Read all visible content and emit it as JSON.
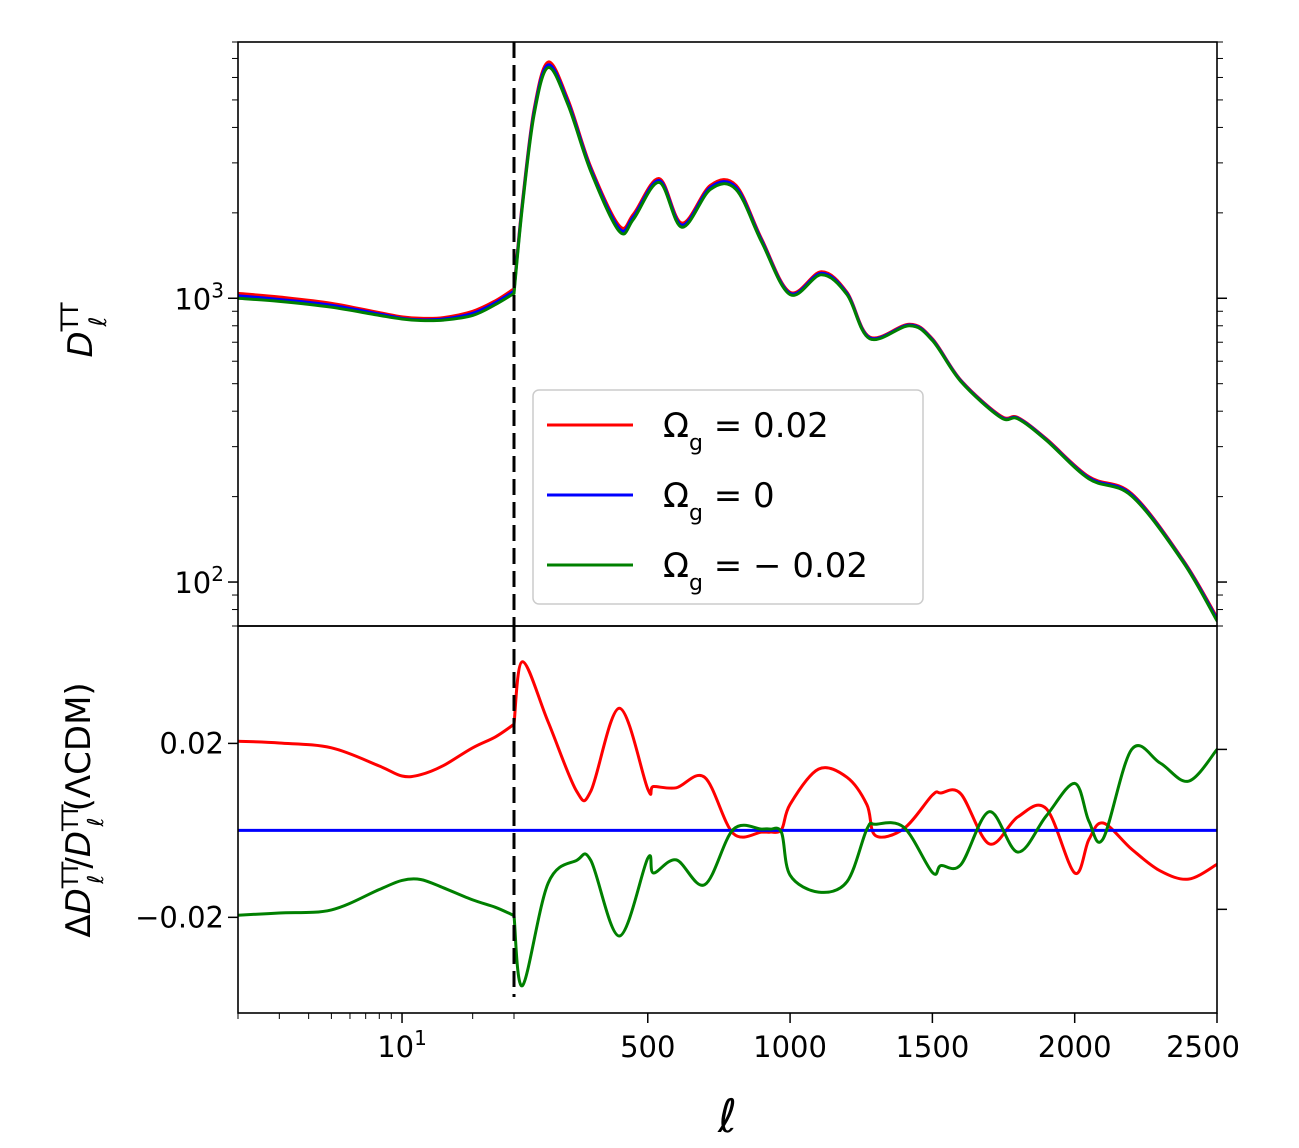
{
  "chart_data": [
    {
      "type": "line",
      "panel": "top",
      "xscale": "log-linear hybrid",
      "yscale": "log",
      "ylim": [
        70,
        8000
      ],
      "ylabel": "D_ℓ^TT",
      "ylabel_parts": {
        "base": "D",
        "sub": "ℓ",
        "sup": "TT"
      },
      "yticks": [
        {
          "value": 100,
          "base": "10",
          "exp": "2"
        },
        {
          "value": 1000,
          "base": "10",
          "exp": "3"
        }
      ],
      "xswitch": 30,
      "vline": 30,
      "legend_position": "center",
      "legend": [
        "Ωg = 0.02",
        "Ωg = 0",
        "Ωg = − 0.02"
      ],
      "legend_parts": [
        {
          "base": "Ω",
          "sub": "g",
          "rest": " = 0.02"
        },
        {
          "base": "Ω",
          "sub": "g",
          "rest": " = 0"
        },
        {
          "base": "Ω",
          "sub": "g",
          "rest": " = − 0.02"
        }
      ],
      "series": [
        {
          "name": "Ωg = 0.02",
          "color": "#ff0000",
          "x": [
            2,
            3,
            5,
            8,
            10,
            12,
            15,
            20,
            25,
            30,
            60,
            100,
            150,
            220,
            300,
            400,
            450,
            540,
            620,
            720,
            810,
            900,
            1000,
            1110,
            1200,
            1280,
            1420,
            1500,
            1600,
            1740,
            1800,
            1900,
            2050,
            2200,
            2380,
            2500
          ],
          "y": [
            1040,
            1010,
            960,
            890,
            860,
            850,
            855,
            900,
            980,
            1080,
            2200,
            4600,
            6800,
            5000,
            2900,
            1800,
            1980,
            2640,
            1840,
            2500,
            2500,
            1620,
            1050,
            1240,
            1050,
            730,
            810,
            720,
            515,
            385,
            380,
            320,
            235,
            205,
            120,
            75
          ]
        },
        {
          "name": "Ωg = 0",
          "color": "#0000ff",
          "x": [
            2,
            3,
            5,
            8,
            10,
            12,
            15,
            20,
            25,
            30,
            60,
            100,
            150,
            220,
            300,
            400,
            450,
            540,
            620,
            720,
            810,
            900,
            1000,
            1110,
            1200,
            1280,
            1420,
            1500,
            1600,
            1740,
            1800,
            1900,
            2050,
            2200,
            2380,
            2500
          ],
          "y": [
            1020,
            990,
            945,
            880,
            850,
            840,
            845,
            885,
            965,
            1060,
            2160,
            4500,
            6650,
            4900,
            2850,
            1760,
            1940,
            2600,
            1810,
            2460,
            2460,
            1600,
            1040,
            1225,
            1040,
            725,
            805,
            715,
            512,
            382,
            378,
            318,
            233,
            203,
            119,
            74
          ]
        },
        {
          "name": "Ωg = − 0.02",
          "color": "#008000",
          "x": [
            2,
            3,
            5,
            8,
            10,
            12,
            15,
            20,
            25,
            30,
            60,
            100,
            150,
            220,
            300,
            400,
            450,
            540,
            620,
            720,
            810,
            900,
            1000,
            1110,
            1200,
            1280,
            1420,
            1500,
            1600,
            1740,
            1800,
            1900,
            2050,
            2200,
            2380,
            2500
          ],
          "y": [
            1000,
            975,
            930,
            870,
            845,
            835,
            838,
            870,
            950,
            1040,
            2120,
            4400,
            6500,
            4800,
            2800,
            1720,
            1900,
            2560,
            1780,
            2420,
            2420,
            1580,
            1030,
            1210,
            1030,
            720,
            800,
            710,
            509,
            380,
            376,
            316,
            231,
            201,
            118,
            73
          ]
        }
      ]
    },
    {
      "type": "line",
      "panel": "bottom",
      "xscale": "log-linear hybrid",
      "yscale": "linear",
      "ylim": [
        -0.042,
        0.047
      ],
      "ylabel": "ΔD_ℓ^TT/D_ℓ^TT(ΛCDM)",
      "ylabel_parts": {
        "pre": "Δ",
        "base": "D",
        "sub": "ℓ",
        "sup": "TT",
        "mid": "/",
        "base2": "D",
        "sub2": "ℓ",
        "sup2": "TT",
        "post": "(ΛCDM)"
      },
      "yticks": [
        {
          "value": 0.02,
          "label": "0.02"
        },
        {
          "value": -0.02,
          "label": "−0.02"
        }
      ],
      "xticks_log": [
        {
          "value": 10,
          "base": "10",
          "exp": "1"
        }
      ],
      "xticks_linear": [
        500,
        1000,
        1500,
        2000,
        2500
      ],
      "xtick_labels_linear": [
        "500",
        "1000",
        "1500",
        "2000",
        "2500"
      ],
      "xlabel": "ℓ",
      "xlim": [
        2,
        2500
      ],
      "xswitch": 30,
      "vline": 30,
      "series": [
        {
          "name": "Ωg = 0.02",
          "color": "#ff0000",
          "x": [
            2,
            3,
            5,
            8,
            10,
            12,
            15,
            20,
            25,
            30,
            60,
            150,
            250,
            300,
            400,
            500,
            520,
            600,
            700,
            800,
            900,
            930,
            970,
            1000,
            1100,
            1200,
            1270,
            1300,
            1400,
            1500,
            1530,
            1600,
            1700,
            1800,
            1900,
            2000,
            2050,
            2100,
            2200,
            2300,
            2400,
            2500
          ],
          "y": [
            0.0205,
            0.0201,
            0.019,
            0.0148,
            0.0125,
            0.0128,
            0.0149,
            0.019,
            0.0215,
            0.0244,
            0.0388,
            0.0249,
            0.009,
            0.009,
            0.0281,
            0.0095,
            0.0101,
            0.0098,
            0.0122,
            -0.0007,
            -0.0004,
            -0.0004,
            0.0002,
            0.006,
            0.0141,
            0.0122,
            0.0059,
            -0.0012,
            0.0004,
            0.0081,
            0.0086,
            0.0084,
            -0.0031,
            0.0031,
            0.005,
            -0.0098,
            -0.0021,
            0.0017,
            -0.0043,
            -0.0093,
            -0.0112,
            -0.0078
          ]
        },
        {
          "name": "Ωg = 0",
          "color": "#0000ff",
          "x": [
            2,
            30,
            2500
          ],
          "y": [
            0,
            0,
            0
          ]
        },
        {
          "name": "Ωg = − 0.02",
          "color": "#008000",
          "x": [
            2,
            3,
            5,
            8,
            10,
            12,
            15,
            20,
            25,
            30,
            60,
            150,
            250,
            300,
            400,
            500,
            520,
            600,
            700,
            800,
            900,
            930,
            970,
            1000,
            1100,
            1200,
            1270,
            1300,
            1400,
            1500,
            1530,
            1600,
            1700,
            1800,
            1900,
            2000,
            2050,
            2100,
            2200,
            2300,
            2400,
            2500
          ],
          "y": [
            -0.0195,
            -0.019,
            -0.0183,
            -0.0136,
            -0.0115,
            -0.0113,
            -0.0132,
            -0.016,
            -0.0177,
            -0.0196,
            -0.0357,
            -0.0121,
            -0.0069,
            -0.0069,
            -0.0243,
            -0.0064,
            -0.0098,
            -0.0068,
            -0.0125,
            0.0002,
            0.0003,
            0.0003,
            -0.0005,
            -0.0103,
            -0.0142,
            -0.0118,
            0.0003,
            0.0014,
            0.0007,
            -0.0097,
            -0.0081,
            -0.0079,
            0.0043,
            -0.005,
            0.0033,
            0.0108,
            0.0021,
            -0.0019,
            0.0186,
            0.0155,
            0.0113,
            0.0186
          ]
        }
      ]
    }
  ]
}
